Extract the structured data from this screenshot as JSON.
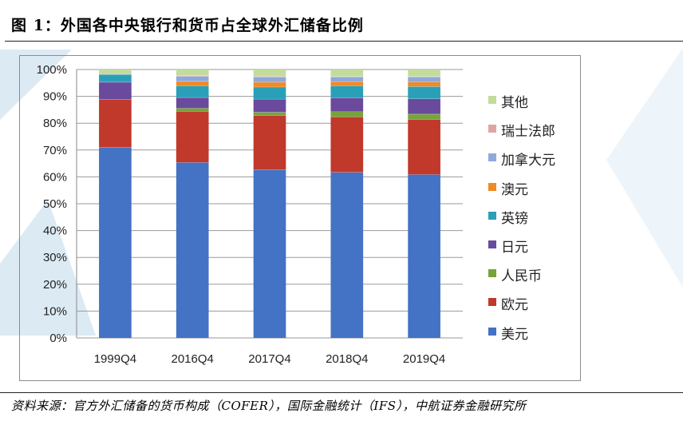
{
  "figure": {
    "title": "图 1：外国各中央银行和货币占全球外汇储备比例",
    "source": "资料来源：官方外汇储备的货币构成（COFER），国际金融统计（IFS），中航证券金融研究所"
  },
  "chart_data": {
    "type": "bar",
    "stacked": true,
    "percent": true,
    "categories": [
      "1999Q4",
      "2016Q4",
      "2017Q4",
      "2018Q4",
      "2019Q4"
    ],
    "y_ticks": [
      "0%",
      "10%",
      "20%",
      "30%",
      "40%",
      "50%",
      "60%",
      "70%",
      "80%",
      "90%",
      "100%"
    ],
    "ylim": [
      0,
      100
    ],
    "grid": true,
    "legend_position": "right",
    "series": [
      {
        "name": "美元",
        "color": "#4472c4",
        "values": [
          71.0,
          65.4,
          62.7,
          61.7,
          60.9
        ]
      },
      {
        "name": "欧元",
        "color": "#c0392b",
        "values": [
          17.9,
          19.1,
          20.2,
          20.7,
          20.5
        ]
      },
      {
        "name": "人民币",
        "color": "#77a33c",
        "values": [
          0.0,
          1.1,
          1.2,
          1.9,
          2.0
        ]
      },
      {
        "name": "日元",
        "color": "#6a4a9c",
        "values": [
          6.4,
          4.0,
          4.9,
          5.2,
          5.7
        ]
      },
      {
        "name": "英镑",
        "color": "#2aa0b8",
        "values": [
          2.9,
          4.3,
          4.5,
          4.4,
          4.6
        ]
      },
      {
        "name": "澳元",
        "color": "#f08a24",
        "values": [
          0.0,
          1.7,
          1.8,
          1.6,
          1.7
        ]
      },
      {
        "name": "加拿大元",
        "color": "#8fa9dc",
        "values": [
          0.0,
          1.9,
          2.0,
          1.8,
          1.9
        ]
      },
      {
        "name": "瑞士法郎",
        "color": "#e0a4a4",
        "values": [
          0.2,
          0.2,
          0.2,
          0.1,
          0.1
        ]
      },
      {
        "name": "其他",
        "color": "#c3dc9b",
        "values": [
          1.6,
          2.3,
          2.5,
          2.6,
          2.6
        ]
      }
    ]
  }
}
